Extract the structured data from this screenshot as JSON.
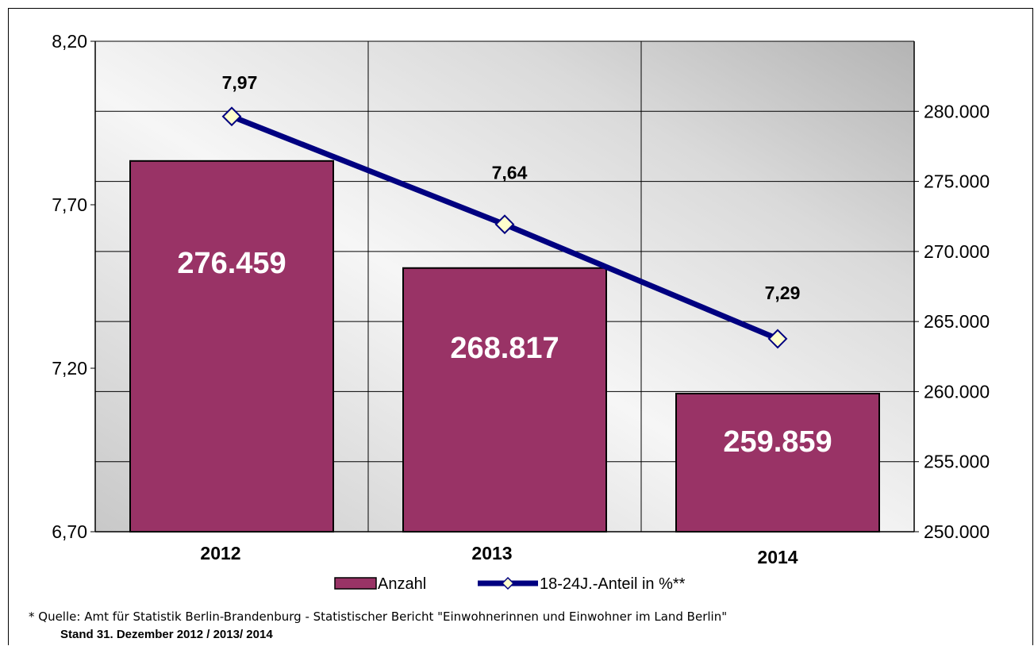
{
  "chart_data": {
    "type": "bar",
    "categories": [
      "2012",
      "2013",
      "2014"
    ],
    "series": [
      {
        "name": "Anzahl",
        "type": "bar",
        "axis": "right",
        "values": [
          276459,
          268817,
          259859
        ],
        "labels": [
          "276.459",
          "268.817",
          "259.859"
        ],
        "color": "#993366"
      },
      {
        "name": "18-24J.-Anteil in %**",
        "type": "line",
        "axis": "left",
        "values": [
          7.97,
          7.64,
          7.29
        ],
        "labels": [
          "7,97",
          "7,64",
          "7,29"
        ],
        "color": "#000080",
        "marker_color": "#FFFFCC"
      }
    ],
    "y_left": {
      "ylim": [
        6.7,
        8.2
      ],
      "ticks": [
        "6,70",
        "7,20",
        "7,70",
        "8,20"
      ]
    },
    "y_right": {
      "ylim": [
        250000,
        285000
      ],
      "ticks": [
        "250.000",
        "255.000",
        "260.000",
        "265.000",
        "270.000",
        "275.000",
        "280.000"
      ]
    },
    "grid": true,
    "legend": "bottom-center"
  },
  "footnote": {
    "source": "* Quelle: Amt für Statistik Berlin-Brandenburg - Statistischer Bericht \"Einwohnerinnen und Einwohner im Land Berlin\"",
    "stand": "Stand 31. Dezember   2012 / 2013/ 2014"
  }
}
